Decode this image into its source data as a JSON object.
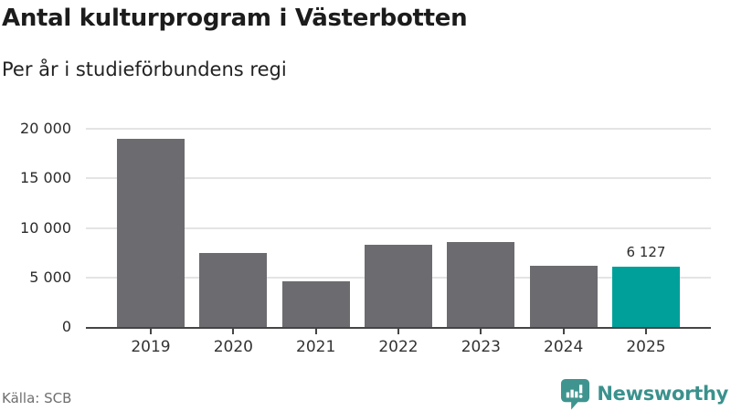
{
  "header": {
    "title": "Antal kulturprogram i Västerbotten",
    "subtitle": "Per år i studieförbundens regi"
  },
  "footer": {
    "source": "Källa: SCB",
    "brand": "Newsworthy"
  },
  "colors": {
    "bar": "#6b6b70",
    "highlight": "#00a09a",
    "grid": "#e4e4e4",
    "axis": "#454545",
    "brand_teal": "#3f948f"
  },
  "chart_data": {
    "type": "bar",
    "title": "Antal kulturprogram i Västerbotten",
    "subtitle": "Per år i studieförbundens regi",
    "source": "Källa: SCB",
    "categories": [
      "2019",
      "2020",
      "2021",
      "2022",
      "2023",
      "2024",
      "2025"
    ],
    "values": [
      19000,
      7500,
      4600,
      8300,
      8600,
      6200,
      6127
    ],
    "highlight_index": 6,
    "bar_labels": {
      "6": "6 127"
    },
    "ylim": [
      0,
      20000
    ],
    "yticks": [
      {
        "value": 0,
        "label": "0"
      },
      {
        "value": 5000,
        "label": "5 000"
      },
      {
        "value": 10000,
        "label": "10 000"
      },
      {
        "value": 15000,
        "label": "15 000"
      },
      {
        "value": 20000,
        "label": "20 000"
      }
    ],
    "xlabel": "",
    "ylabel": "",
    "grid": true,
    "legend": false
  },
  "logo": {
    "icon": "newsworthy-speech-bubble-chart-icon",
    "text": "Newsworthy"
  }
}
